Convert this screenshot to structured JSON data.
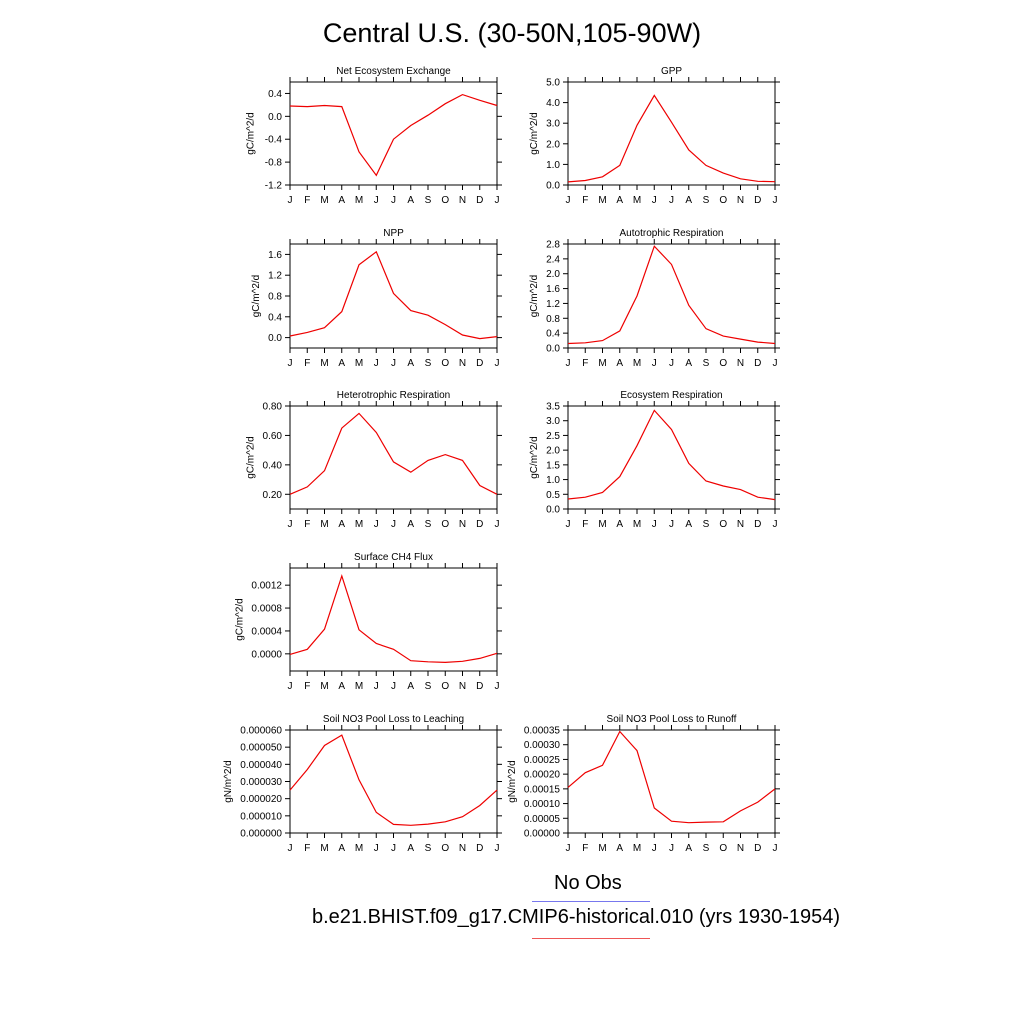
{
  "title": "Central U.S. (30-50N,105-90W)",
  "legend": {
    "obs_label": "No Obs",
    "obs_color": "#7777ee",
    "model_label": "b.e21.BHIST.f09_g17.CMIP6-historical.010 (yrs 1930-1954)",
    "model_color": "#ee5555"
  },
  "line_color": "#ee0000",
  "months": [
    "J",
    "F",
    "M",
    "A",
    "M",
    "J",
    "J",
    "A",
    "S",
    "O",
    "N",
    "D",
    "J"
  ],
  "chart_data": [
    {
      "type": "line",
      "title": "Net Ecosystem Exchange",
      "ylabel": "gC/m^2/d",
      "ylim": [
        -1.2,
        0.6
      ],
      "yticks": [
        -1.2,
        -0.8,
        -0.4,
        0.0,
        0.4
      ],
      "ytick_labels": [
        "-1.2",
        "-0.8",
        "-0.4",
        "0.0",
        "0.4"
      ],
      "values": [
        0.18,
        0.17,
        0.19,
        0.17,
        -0.62,
        -1.03,
        -0.4,
        -0.16,
        0.02,
        0.22,
        0.38,
        0.28,
        0.19
      ]
    },
    {
      "type": "line",
      "title": "GPP",
      "ylabel": "gC/m^2/d",
      "ylim": [
        0.0,
        5.0
      ],
      "yticks": [
        0.0,
        1.0,
        2.0,
        3.0,
        4.0,
        5.0
      ],
      "ytick_labels": [
        "0.0",
        "1.0",
        "2.0",
        "3.0",
        "4.0",
        "5.0"
      ],
      "values": [
        0.15,
        0.22,
        0.4,
        0.95,
        2.9,
        4.35,
        3.05,
        1.7,
        0.95,
        0.58,
        0.3,
        0.18,
        0.16
      ]
    },
    {
      "type": "line",
      "title": "NPP",
      "ylabel": "gC/m^2/d",
      "ylim": [
        -0.2,
        1.8
      ],
      "yticks": [
        0.0,
        0.4,
        0.8,
        1.2,
        1.6
      ],
      "ytick_labels": [
        "0.0",
        "0.4",
        "0.8",
        "1.2",
        "1.6"
      ],
      "values": [
        0.03,
        0.1,
        0.19,
        0.5,
        1.4,
        1.65,
        0.85,
        0.52,
        0.43,
        0.25,
        0.05,
        -0.02,
        0.02
      ]
    },
    {
      "type": "line",
      "title": "Autotrophic Respiration",
      "ylabel": "gC/m^2/d",
      "ylim": [
        0.0,
        2.8
      ],
      "yticks": [
        0.0,
        0.4,
        0.8,
        1.2,
        1.6,
        2.0,
        2.4,
        2.8
      ],
      "ytick_labels": [
        "0.0",
        "0.4",
        "0.8",
        "1.2",
        "1.6",
        "2.0",
        "2.4",
        "2.8"
      ],
      "values": [
        0.12,
        0.14,
        0.2,
        0.46,
        1.4,
        2.74,
        2.25,
        1.15,
        0.52,
        0.32,
        0.24,
        0.16,
        0.12
      ]
    },
    {
      "type": "line",
      "title": "Heterotrophic Respiration",
      "ylabel": "gC/m^2/d",
      "ylim": [
        0.1,
        0.8
      ],
      "yticks": [
        0.2,
        0.4,
        0.6,
        0.8
      ],
      "ytick_labels": [
        "0.20",
        "0.40",
        "0.60",
        "0.80"
      ],
      "values": [
        0.2,
        0.25,
        0.36,
        0.65,
        0.75,
        0.62,
        0.42,
        0.35,
        0.43,
        0.47,
        0.43,
        0.26,
        0.2
      ]
    },
    {
      "type": "line",
      "title": "Ecosystem Respiration",
      "ylabel": "gC/m^2/d",
      "ylim": [
        0.0,
        3.5
      ],
      "yticks": [
        0.0,
        0.5,
        1.0,
        1.5,
        2.0,
        2.5,
        3.0,
        3.5
      ],
      "ytick_labels": [
        "0.0",
        "0.5",
        "1.0",
        "1.5",
        "2.0",
        "2.5",
        "3.0",
        "3.5"
      ],
      "values": [
        0.34,
        0.4,
        0.56,
        1.1,
        2.15,
        3.35,
        2.7,
        1.55,
        0.95,
        0.78,
        0.66,
        0.4,
        0.32
      ]
    },
    {
      "type": "line",
      "title": "Surface CH4 Flux",
      "ylabel": "gC/m^2/d",
      "ylim": [
        -0.0003,
        0.0015
      ],
      "yticks": [
        0.0,
        0.0004,
        0.0008,
        0.0012
      ],
      "ytick_labels": [
        "0.0000",
        "0.0004",
        "0.0008",
        "0.0012"
      ],
      "values": [
        -1e-05,
        8e-05,
        0.00043,
        0.00136,
        0.00042,
        0.00018,
        8e-05,
        -0.00012,
        -0.00014,
        -0.00015,
        -0.00013,
        -8e-05,
        1e-05
      ]
    },
    {
      "type": "line",
      "title": "Soil NO3 Pool Loss to Leaching",
      "ylabel": "gN/m^2/d",
      "ylim": [
        0.0,
        6e-05
      ],
      "yticks": [
        0.0,
        1e-05,
        2e-05,
        3e-05,
        4e-05,
        5e-05,
        6e-05
      ],
      "ytick_labels": [
        "0.000000",
        "0.000010",
        "0.000020",
        "0.000030",
        "0.000040",
        "0.000050",
        "0.000060"
      ],
      "values": [
        2.5e-05,
        3.7e-05,
        5.1e-05,
        5.7e-05,
        3.1e-05,
        1.2e-05,
        5e-06,
        4.5e-06,
        5.2e-06,
        6.5e-06,
        9.5e-06,
        1.6e-05,
        2.5e-05
      ]
    },
    {
      "type": "line",
      "title": "Soil NO3 Pool Loss to Runoff",
      "ylabel": "gN/m^2/d",
      "ylim": [
        0.0,
        0.00035
      ],
      "yticks": [
        0.0,
        5e-05,
        0.0001,
        0.00015,
        0.0002,
        0.00025,
        0.0003,
        0.00035
      ],
      "ytick_labels": [
        "0.00000",
        "0.00005",
        "0.00010",
        "0.00015",
        "0.00020",
        "0.00025",
        "0.00030",
        "0.00035"
      ],
      "values": [
        0.000155,
        0.000205,
        0.00023,
        0.000345,
        0.00028,
        8.5e-05,
        4e-05,
        3.5e-05,
        3.7e-05,
        3.8e-05,
        7.5e-05,
        0.000105,
        0.00015
      ]
    }
  ]
}
